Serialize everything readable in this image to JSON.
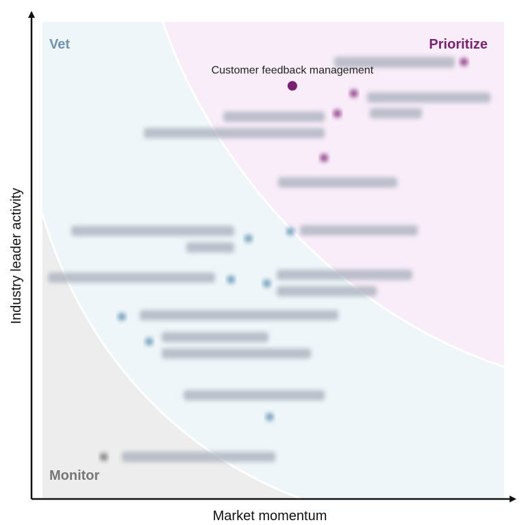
{
  "chart_data": {
    "type": "scatter",
    "xlabel": "Market momentum",
    "ylabel": "Industry leader activity",
    "xlim": [
      0,
      100
    ],
    "ylim": [
      0,
      100
    ],
    "grid": false,
    "legend": "none",
    "zones": [
      {
        "name": "Vet",
        "color": "#6f93b0",
        "fill": "#eef6f9",
        "placement": "top-left"
      },
      {
        "name": "Prioritize",
        "color": "#7b1f73",
        "fill": "#f8edf9",
        "placement": "top-right"
      },
      {
        "name": "Monitor",
        "color": "#777777",
        "fill": "#ededed",
        "placement": "bottom-left"
      }
    ],
    "points": [
      {
        "label": "Customer feedback management",
        "x": 55.2,
        "y": 86.6,
        "zone": "Prioritize",
        "color": "#7b1f73",
        "highlight": true,
        "label_pos": "above"
      },
      {
        "label": "",
        "x": 91.5,
        "y": 91.6,
        "zone": "Prioritize",
        "color": "#9a4f92",
        "highlight": false
      },
      {
        "label": "",
        "x": 68.2,
        "y": 85.0,
        "zone": "Prioritize",
        "color": "#9a4f92",
        "highlight": false
      },
      {
        "label": "",
        "x": 64.7,
        "y": 80.8,
        "zone": "Prioritize",
        "color": "#9a4f92",
        "highlight": false
      },
      {
        "label": "",
        "x": 61.9,
        "y": 71.5,
        "zone": "Prioritize",
        "color": "#9a4f92",
        "highlight": false
      },
      {
        "label": "",
        "x": 54.8,
        "y": 56.1,
        "zone": "Vet",
        "color": "#7aa6bf",
        "highlight": false
      },
      {
        "label": "",
        "x": 45.9,
        "y": 54.6,
        "zone": "Vet",
        "color": "#7aa6bf",
        "highlight": false
      },
      {
        "label": "",
        "x": 42.2,
        "y": 46.0,
        "zone": "Vet",
        "color": "#7aa6bf",
        "highlight": false
      },
      {
        "label": "",
        "x": 49.8,
        "y": 45.2,
        "zone": "Vet",
        "color": "#7aa6bf",
        "highlight": false
      },
      {
        "label": "",
        "x": 19.1,
        "y": 38.2,
        "zone": "Vet",
        "color": "#7aa6bf",
        "highlight": false
      },
      {
        "label": "",
        "x": 24.9,
        "y": 33.0,
        "zone": "Vet",
        "color": "#7aa6bf",
        "highlight": false
      },
      {
        "label": "",
        "x": 50.4,
        "y": 17.2,
        "zone": "Vet",
        "color": "#7aa6bf",
        "highlight": false
      },
      {
        "label": "",
        "x": 15.3,
        "y": 8.8,
        "zone": "Monitor",
        "color": "#8a8a8a",
        "highlight": false
      }
    ]
  }
}
